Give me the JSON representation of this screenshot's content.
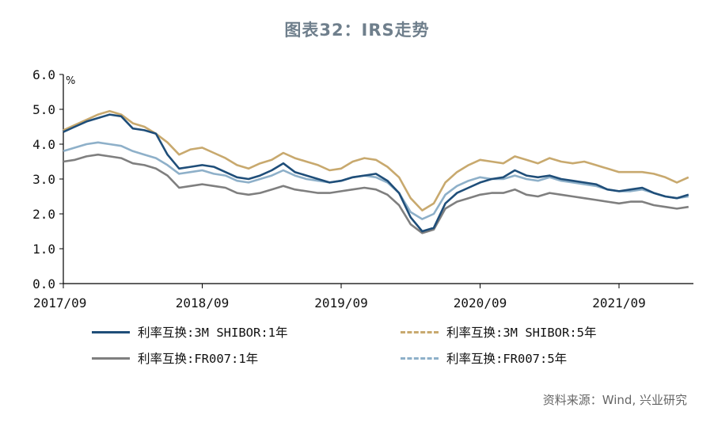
{
  "title": "图表32：IRS走势",
  "source": "资料来源：Wind, 兴业研究",
  "chart_data": {
    "type": "line",
    "title": "图表32：IRS走势",
    "ylabel": "%",
    "ylim": [
      0,
      6
    ],
    "yticks": [
      "0.0",
      "1.0",
      "2.0",
      "3.0",
      "4.0",
      "5.0",
      "6.0"
    ],
    "xticks": [
      "2017/09",
      "2018/09",
      "2019/09",
      "2020/09",
      "2021/09"
    ],
    "x": [
      "2017/09",
      "2017/10",
      "2017/11",
      "2017/12",
      "2018/01",
      "2018/02",
      "2018/03",
      "2018/04",
      "2018/05",
      "2018/06",
      "2018/07",
      "2018/08",
      "2018/09",
      "2018/10",
      "2018/11",
      "2018/12",
      "2019/01",
      "2019/02",
      "2019/03",
      "2019/04",
      "2019/05",
      "2019/06",
      "2019/07",
      "2019/08",
      "2019/09",
      "2019/10",
      "2019/11",
      "2019/12",
      "2020/01",
      "2020/02",
      "2020/03",
      "2020/04",
      "2020/05",
      "2020/06",
      "2020/07",
      "2020/08",
      "2020/09",
      "2020/10",
      "2020/11",
      "2020/12",
      "2021/01",
      "2021/02",
      "2021/03",
      "2021/04",
      "2021/05",
      "2021/06",
      "2021/07",
      "2021/08",
      "2021/09",
      "2021/10",
      "2021/11",
      "2021/12",
      "2022/01",
      "2022/02",
      "2022/03"
    ],
    "series": [
      {
        "name": "利率互换:3M SHIBOR:1年",
        "color": "#1f4e79",
        "dash": "solid",
        "values": [
          4.35,
          4.5,
          4.65,
          4.75,
          4.85,
          4.8,
          4.45,
          4.4,
          4.3,
          3.7,
          3.3,
          3.35,
          3.4,
          3.35,
          3.2,
          3.05,
          3.0,
          3.1,
          3.25,
          3.45,
          3.2,
          3.1,
          3.0,
          2.9,
          2.95,
          3.05,
          3.1,
          3.15,
          2.95,
          2.6,
          1.9,
          1.5,
          1.6,
          2.3,
          2.6,
          2.75,
          2.9,
          3.0,
          3.05,
          3.25,
          3.1,
          3.05,
          3.1,
          3.0,
          2.95,
          2.9,
          2.85,
          2.7,
          2.65,
          2.7,
          2.75,
          2.6,
          2.5,
          2.45,
          2.55
        ]
      },
      {
        "name": "利率互换:3M SHIBOR:5年",
        "color": "#c8a96e",
        "dash": "dashed",
        "values": [
          4.4,
          4.55,
          4.7,
          4.85,
          4.95,
          4.85,
          4.6,
          4.5,
          4.3,
          4.05,
          3.7,
          3.85,
          3.9,
          3.75,
          3.6,
          3.4,
          3.3,
          3.45,
          3.55,
          3.75,
          3.6,
          3.5,
          3.4,
          3.25,
          3.3,
          3.5,
          3.6,
          3.55,
          3.35,
          3.05,
          2.45,
          2.1,
          2.3,
          2.9,
          3.2,
          3.4,
          3.55,
          3.5,
          3.45,
          3.65,
          3.55,
          3.45,
          3.6,
          3.5,
          3.45,
          3.5,
          3.4,
          3.3,
          3.2,
          3.2,
          3.2,
          3.15,
          3.05,
          2.9,
          3.05
        ]
      },
      {
        "name": "利率互换:FR007:1年",
        "color": "#7f7f7f",
        "dash": "solid",
        "values": [
          3.5,
          3.55,
          3.65,
          3.7,
          3.65,
          3.6,
          3.45,
          3.4,
          3.3,
          3.1,
          2.75,
          2.8,
          2.85,
          2.8,
          2.75,
          2.6,
          2.55,
          2.6,
          2.7,
          2.8,
          2.7,
          2.65,
          2.6,
          2.6,
          2.65,
          2.7,
          2.75,
          2.7,
          2.55,
          2.25,
          1.7,
          1.45,
          1.55,
          2.15,
          2.35,
          2.45,
          2.55,
          2.6,
          2.6,
          2.7,
          2.55,
          2.5,
          2.6,
          2.55,
          2.5,
          2.45,
          2.4,
          2.35,
          2.3,
          2.35,
          2.35,
          2.25,
          2.2,
          2.15,
          2.2
        ]
      },
      {
        "name": "利率互换:FR007:5年",
        "color": "#8eb0c9",
        "dash": "dashed",
        "values": [
          3.8,
          3.9,
          4.0,
          4.05,
          4.0,
          3.95,
          3.8,
          3.7,
          3.6,
          3.4,
          3.15,
          3.2,
          3.25,
          3.15,
          3.1,
          2.95,
          2.9,
          3.0,
          3.1,
          3.25,
          3.1,
          3.0,
          2.95,
          2.9,
          2.95,
          3.05,
          3.1,
          3.05,
          2.9,
          2.6,
          2.05,
          1.85,
          2.0,
          2.55,
          2.8,
          2.95,
          3.05,
          3.0,
          3.0,
          3.1,
          3.0,
          2.95,
          3.05,
          2.95,
          2.9,
          2.85,
          2.8,
          2.7,
          2.65,
          2.65,
          2.7,
          2.6,
          2.5,
          2.45,
          2.5
        ]
      }
    ],
    "legend_position": "bottom",
    "grid": false
  }
}
